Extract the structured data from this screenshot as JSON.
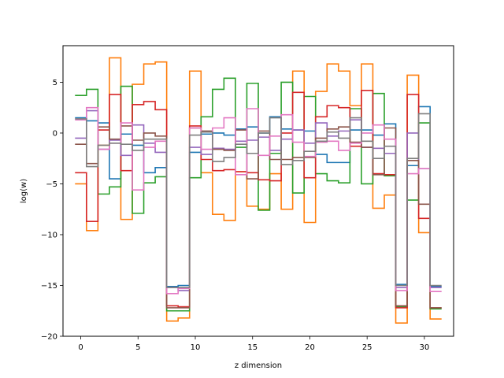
{
  "chart_data": {
    "type": "line",
    "style": "step",
    "xlabel": "z dimension",
    "ylabel": "log(w)",
    "xlim": [
      -1.55,
      32.55
    ],
    "ylim": [
      -20,
      8.6
    ],
    "xticks": [
      0,
      5,
      10,
      15,
      20,
      25,
      30
    ],
    "yticks": [
      -20,
      -15,
      -10,
      -5,
      0,
      5
    ],
    "grid": false,
    "legend": "none",
    "series": [
      {
        "color": "#1f77b4",
        "values": [
          1.5,
          1.2,
          1.0,
          -4.5,
          -0.1,
          -1.2,
          -3.9,
          -3.4,
          -15.1,
          -15.0,
          -1.9,
          -0.1,
          0.0,
          -0.2,
          0.4,
          0.6,
          0.0,
          1.6,
          0.4,
          0.3,
          0.2,
          -2.1,
          -2.9,
          -2.9,
          0.3,
          0.3,
          -0.2,
          0.9,
          -14.9,
          -3.2,
          2.6,
          -15.1
        ]
      },
      {
        "color": "#ff7f0e",
        "values": [
          -5.0,
          -9.6,
          -1.2,
          7.4,
          -8.5,
          4.8,
          6.8,
          7.0,
          -18.5,
          -18.2,
          6.1,
          -3.9,
          -8.0,
          -8.6,
          -3.8,
          -7.2,
          -7.5,
          -4.0,
          -7.5,
          6.1,
          -8.8,
          4.1,
          6.8,
          6.1,
          2.7,
          6.8,
          -7.4,
          -6.1,
          -18.7,
          5.7,
          -9.8,
          -18.3
        ]
      },
      {
        "color": "#2ca02c",
        "values": [
          3.7,
          4.3,
          -6.0,
          -5.3,
          4.6,
          -7.9,
          -4.9,
          -4.3,
          -17.5,
          -17.5,
          -4.4,
          1.6,
          4.3,
          5.4,
          -1.4,
          4.9,
          -7.6,
          -2.0,
          5.0,
          -5.9,
          3.6,
          -4.0,
          -4.7,
          -4.9,
          2.4,
          -5.0,
          3.9,
          -4.2,
          -17.1,
          -6.6,
          1.0,
          -17.3
        ]
      },
      {
        "color": "#d62728",
        "values": [
          -3.9,
          -8.7,
          0.3,
          3.8,
          -3.7,
          2.8,
          3.1,
          2.3,
          -17.0,
          -17.1,
          0.7,
          -2.6,
          -3.7,
          -3.6,
          -3.8,
          -3.9,
          -4.6,
          -4.7,
          0.0,
          4.0,
          -4.4,
          1.6,
          2.7,
          2.5,
          -1.3,
          4.2,
          -4.0,
          -4.1,
          -17.2,
          3.8,
          -8.4,
          -17.2
        ]
      },
      {
        "color": "#9467bd",
        "values": [
          -0.5,
          2.2,
          -1.6,
          -0.7,
          -2.2,
          0.8,
          -1.0,
          -1.9,
          -15.2,
          -15.5,
          -1.4,
          -2.1,
          -1.5,
          -1.6,
          -0.8,
          -0.7,
          -0.4,
          -1.7,
          -0.6,
          0.3,
          -1.0,
          1.0,
          -0.3,
          0.2,
          1.3,
          -1.4,
          -1.5,
          -2.0,
          -15.2,
          0.0,
          -3.5,
          -15.2
        ]
      },
      {
        "color": "#8c564b",
        "values": [
          -1.1,
          -3.0,
          0.6,
          -0.6,
          0.7,
          -0.7,
          0.0,
          -0.3,
          -17.2,
          -17.2,
          0.5,
          0.2,
          -1.6,
          -1.7,
          0.3,
          -4.5,
          0.2,
          -2.6,
          -2.6,
          -2.4,
          -2.4,
          -0.5,
          0.4,
          0.6,
          -0.9,
          -1.4,
          -4.1,
          0.5,
          -17.0,
          -2.7,
          -7.0,
          -17.2
        ]
      },
      {
        "color": "#e377c2",
        "values": [
          1.3,
          2.5,
          -1.6,
          -1.0,
          1.0,
          -5.6,
          -1.4,
          -0.8,
          -15.8,
          -15.3,
          0.5,
          -1.6,
          0.5,
          1.5,
          -4.1,
          2.4,
          -2.2,
          -0.3,
          1.8,
          -0.9,
          -2.3,
          -0.9,
          -0.8,
          -1.7,
          -1.0,
          0.0,
          0.8,
          -0.6,
          -15.5,
          -4.0,
          -3.5,
          -15.6
        ]
      },
      {
        "color": "#7f7f7f",
        "values": [
          1.4,
          -3.3,
          -1.2,
          -1.0,
          -1.1,
          -1.7,
          -0.6,
          -0.6,
          -15.2,
          -15.2,
          -0.2,
          0.1,
          -2.8,
          -2.4,
          -1.1,
          -2.0,
          0.0,
          1.5,
          -3.1,
          -2.7,
          -1.8,
          -0.8,
          0.1,
          -0.5,
          1.5,
          -0.8,
          -2.5,
          -1.3,
          -15.0,
          -2.5,
          1.9,
          -15.0
        ]
      }
    ]
  }
}
